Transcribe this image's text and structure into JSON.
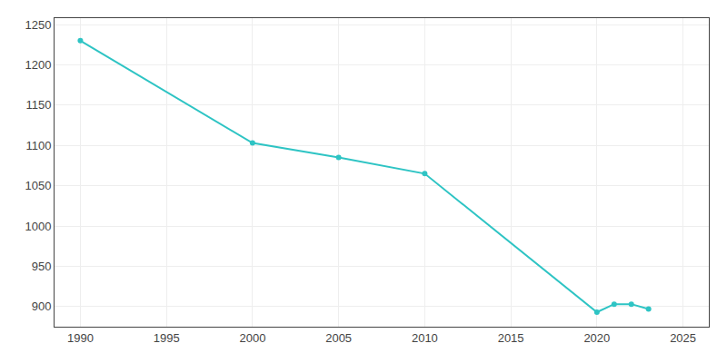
{
  "chart_data": {
    "type": "line",
    "x": [
      1990,
      2000,
      2005,
      2010,
      2020,
      2021,
      2022,
      2023
    ],
    "values": [
      1230,
      1103,
      1085,
      1065,
      893,
      903,
      903,
      897
    ],
    "color": "#2EC4C4",
    "marker": "circle",
    "xlim": [
      1988.5,
      2026.5
    ],
    "ylim": [
      875,
      1258
    ],
    "xticks": [
      1990,
      1995,
      2000,
      2005,
      2010,
      2015,
      2020,
      2025
    ],
    "yticks": [
      900,
      950,
      1000,
      1050,
      1100,
      1150,
      1200,
      1250
    ],
    "grid": true
  }
}
